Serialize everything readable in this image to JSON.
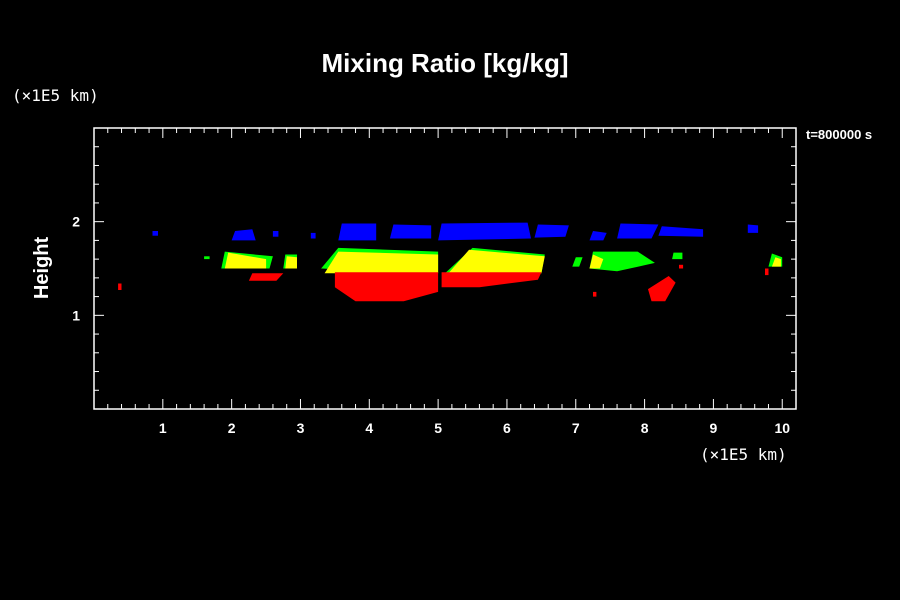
{
  "chart_data": {
    "type": "heatmap",
    "title": "Mixing Ratio [kg/kg]",
    "xlabel": "",
    "ylabel": "Height",
    "x_unit": "(×1E5 km)",
    "y_unit": "(×1E5 km)",
    "time_label": "t=800000 s",
    "xlim": [
      0,
      10.2
    ],
    "ylim": [
      0,
      3
    ],
    "x_ticks": [
      "1",
      "2",
      "3",
      "4",
      "5",
      "6",
      "7",
      "8",
      "9",
      "10"
    ],
    "y_ticks": [
      "1",
      "2"
    ],
    "grid": false,
    "background": "#000000",
    "colors": {
      "blue": "#0000ff",
      "yellow": "#ffff00",
      "green": "#00ff00",
      "red": "#ff0000",
      "axes": "#ffffff"
    },
    "regions": [
      {
        "color": "blue",
        "points": [
          [
            3.55,
            1.8
          ],
          [
            3.6,
            1.98
          ],
          [
            4.1,
            1.98
          ],
          [
            4.1,
            1.8
          ]
        ]
      },
      {
        "color": "blue",
        "points": [
          [
            4.3,
            1.82
          ],
          [
            4.35,
            1.97
          ],
          [
            4.9,
            1.96
          ],
          [
            4.9,
            1.82
          ]
        ]
      },
      {
        "color": "blue",
        "points": [
          [
            5.0,
            1.8
          ],
          [
            5.05,
            1.98
          ],
          [
            6.3,
            1.99
          ],
          [
            6.35,
            1.82
          ]
        ]
      },
      {
        "color": "blue",
        "points": [
          [
            6.4,
            1.83
          ],
          [
            6.45,
            1.97
          ],
          [
            6.9,
            1.96
          ],
          [
            6.85,
            1.84
          ]
        ]
      },
      {
        "color": "blue",
        "points": [
          [
            7.6,
            1.82
          ],
          [
            7.65,
            1.98
          ],
          [
            8.2,
            1.97
          ],
          [
            8.1,
            1.82
          ]
        ]
      },
      {
        "color": "blue",
        "points": [
          [
            8.2,
            1.85
          ],
          [
            8.25,
            1.95
          ],
          [
            8.85,
            1.92
          ],
          [
            8.85,
            1.84
          ]
        ]
      },
      {
        "color": "blue",
        "points": [
          [
            2.0,
            1.8
          ],
          [
            2.05,
            1.9
          ],
          [
            2.3,
            1.92
          ],
          [
            2.35,
            1.8
          ]
        ]
      },
      {
        "color": "blue",
        "points": [
          [
            7.2,
            1.8
          ],
          [
            7.25,
            1.9
          ],
          [
            7.45,
            1.88
          ],
          [
            7.4,
            1.8
          ]
        ]
      },
      {
        "color": "blue",
        "points": [
          [
            9.5,
            1.88
          ],
          [
            9.5,
            1.97
          ],
          [
            9.65,
            1.96
          ],
          [
            9.65,
            1.88
          ]
        ]
      },
      {
        "color": "blue",
        "points": [
          [
            0.85,
            1.85
          ],
          [
            0.85,
            1.9
          ],
          [
            0.93,
            1.9
          ],
          [
            0.93,
            1.85
          ]
        ]
      },
      {
        "color": "blue",
        "points": [
          [
            2.6,
            1.84
          ],
          [
            2.6,
            1.9
          ],
          [
            2.68,
            1.9
          ],
          [
            2.68,
            1.84
          ]
        ]
      },
      {
        "color": "blue",
        "points": [
          [
            3.15,
            1.82
          ],
          [
            3.15,
            1.88
          ],
          [
            3.22,
            1.88
          ],
          [
            3.22,
            1.82
          ]
        ]
      },
      {
        "color": "green",
        "points": [
          [
            1.85,
            1.5
          ],
          [
            1.9,
            1.68
          ],
          [
            2.6,
            1.63
          ],
          [
            2.55,
            1.5
          ]
        ]
      },
      {
        "color": "yellow",
        "points": [
          [
            1.9,
            1.5
          ],
          [
            1.95,
            1.67
          ],
          [
            2.5,
            1.6
          ],
          [
            2.5,
            1.5
          ]
        ]
      },
      {
        "color": "green",
        "points": [
          [
            2.75,
            1.5
          ],
          [
            2.78,
            1.65
          ],
          [
            2.95,
            1.65
          ],
          [
            2.95,
            1.5
          ]
        ]
      },
      {
        "color": "yellow",
        "points": [
          [
            2.78,
            1.5
          ],
          [
            2.8,
            1.63
          ],
          [
            2.95,
            1.62
          ],
          [
            2.95,
            1.5
          ]
        ]
      },
      {
        "color": "green",
        "points": [
          [
            3.3,
            1.5
          ],
          [
            3.55,
            1.72
          ],
          [
            5.0,
            1.68
          ],
          [
            5.0,
            1.45
          ]
        ]
      },
      {
        "color": "yellow",
        "points": [
          [
            3.35,
            1.45
          ],
          [
            3.55,
            1.68
          ],
          [
            5.0,
            1.65
          ],
          [
            5.0,
            1.45
          ]
        ]
      },
      {
        "color": "green",
        "points": [
          [
            5.1,
            1.45
          ],
          [
            5.5,
            1.72
          ],
          [
            6.55,
            1.65
          ],
          [
            6.5,
            1.45
          ]
        ]
      },
      {
        "color": "yellow",
        "points": [
          [
            5.15,
            1.45
          ],
          [
            5.45,
            1.7
          ],
          [
            6.55,
            1.63
          ],
          [
            6.5,
            1.45
          ]
        ]
      },
      {
        "color": "green",
        "points": [
          [
            6.95,
            1.52
          ],
          [
            7.0,
            1.62
          ],
          [
            7.1,
            1.62
          ],
          [
            7.05,
            1.52
          ]
        ]
      },
      {
        "color": "green",
        "points": [
          [
            7.2,
            1.5
          ],
          [
            7.25,
            1.68
          ],
          [
            7.9,
            1.68
          ],
          [
            8.15,
            1.56
          ],
          [
            7.6,
            1.47
          ]
        ]
      },
      {
        "color": "yellow",
        "points": [
          [
            7.2,
            1.5
          ],
          [
            7.25,
            1.65
          ],
          [
            7.4,
            1.6
          ],
          [
            7.35,
            1.5
          ]
        ]
      },
      {
        "color": "green",
        "points": [
          [
            8.4,
            1.6
          ],
          [
            8.42,
            1.67
          ],
          [
            8.55,
            1.67
          ],
          [
            8.55,
            1.6
          ]
        ]
      },
      {
        "color": "green",
        "points": [
          [
            9.8,
            1.52
          ],
          [
            9.85,
            1.66
          ],
          [
            10.0,
            1.62
          ],
          [
            10.0,
            1.52
          ]
        ]
      },
      {
        "color": "yellow",
        "points": [
          [
            9.85,
            1.52
          ],
          [
            9.9,
            1.62
          ],
          [
            9.98,
            1.6
          ],
          [
            9.98,
            1.52
          ]
        ]
      },
      {
        "color": "green",
        "points": [
          [
            1.6,
            1.6
          ],
          [
            1.6,
            1.63
          ],
          [
            1.68,
            1.63
          ],
          [
            1.68,
            1.6
          ]
        ]
      },
      {
        "color": "red",
        "points": [
          [
            2.25,
            1.37
          ],
          [
            2.3,
            1.45
          ],
          [
            2.75,
            1.45
          ],
          [
            2.65,
            1.37
          ]
        ]
      },
      {
        "color": "red",
        "points": [
          [
            3.5,
            1.3
          ],
          [
            3.8,
            1.15
          ],
          [
            4.5,
            1.15
          ],
          [
            5.0,
            1.25
          ],
          [
            5.0,
            1.46
          ],
          [
            3.5,
            1.46
          ]
        ]
      },
      {
        "color": "red",
        "points": [
          [
            5.05,
            1.3
          ],
          [
            5.05,
            1.46
          ],
          [
            6.5,
            1.46
          ],
          [
            6.45,
            1.38
          ],
          [
            5.6,
            1.3
          ]
        ]
      },
      {
        "color": "red",
        "points": [
          [
            8.1,
            1.15
          ],
          [
            8.05,
            1.28
          ],
          [
            8.35,
            1.42
          ],
          [
            8.45,
            1.35
          ],
          [
            8.3,
            1.15
          ]
        ]
      },
      {
        "color": "red",
        "points": [
          [
            9.75,
            1.43
          ],
          [
            9.75,
            1.5
          ],
          [
            9.8,
            1.5
          ],
          [
            9.8,
            1.43
          ]
        ]
      },
      {
        "color": "red",
        "points": [
          [
            0.35,
            1.27
          ],
          [
            0.35,
            1.34
          ],
          [
            0.4,
            1.34
          ],
          [
            0.4,
            1.27
          ]
        ]
      },
      {
        "color": "red",
        "points": [
          [
            7.25,
            1.2
          ],
          [
            7.25,
            1.25
          ],
          [
            7.3,
            1.25
          ],
          [
            7.3,
            1.2
          ]
        ]
      },
      {
        "color": "red",
        "points": [
          [
            8.5,
            1.5
          ],
          [
            8.5,
            1.54
          ],
          [
            8.56,
            1.54
          ],
          [
            8.56,
            1.5
          ]
        ]
      }
    ]
  }
}
